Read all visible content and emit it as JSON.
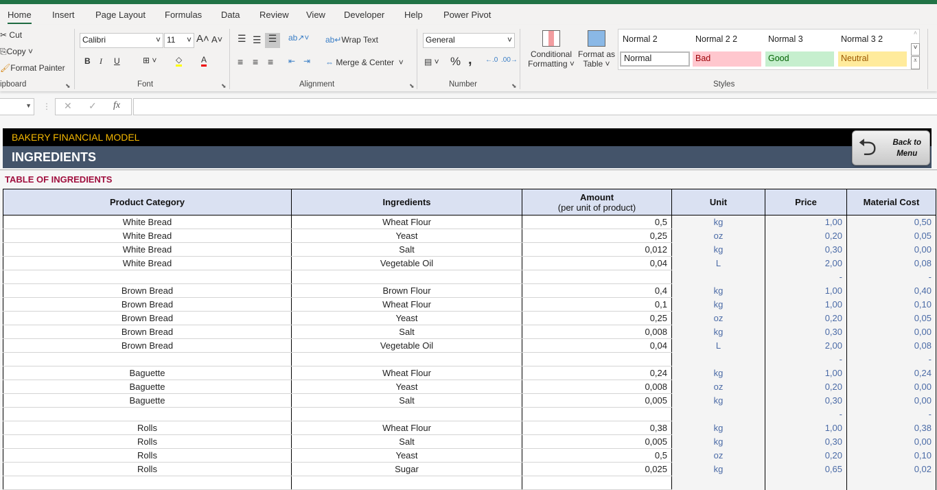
{
  "ribbon_tabs": [
    "Home",
    "Insert",
    "Page Layout",
    "Formulas",
    "Data",
    "Review",
    "View",
    "Developer",
    "Help",
    "Power Pivot"
  ],
  "clipboard": {
    "cut": "Cut",
    "copy": "Copy",
    "format_painter": "Format Painter",
    "group": "ipboard"
  },
  "font": {
    "name": "Calibri",
    "size": "11",
    "group": "Font",
    "bold": "B",
    "italic": "I",
    "underline": "U"
  },
  "alignment": {
    "wrap_text": "Wrap Text",
    "merge_center": "Merge & Center",
    "group": "Alignment"
  },
  "number": {
    "format": "General",
    "group": "Number",
    "percent": "%",
    "comma": ","
  },
  "styles": {
    "conditional": [
      "Conditional",
      "Formatting"
    ],
    "format_table": [
      "Format as",
      "Table"
    ],
    "group": "Styles",
    "cells": [
      "Normal 2",
      "Normal 2 2",
      "Normal 3",
      "Normal 3 2",
      "Normal",
      "Bad",
      "Good",
      "Neutral"
    ]
  },
  "formula_bar": {
    "fx": "fx",
    "value": ""
  },
  "header": {
    "model_title": "BAKERY FINANCIAL MODEL",
    "section_title": "INGREDIENTS",
    "back_button": [
      "Back to",
      "Menu"
    ]
  },
  "table": {
    "title": "TABLE OF INGREDIENTS",
    "columns": [
      "Product Category",
      "Ingredients",
      "Amount",
      "Unit",
      "Price",
      "Material Cost"
    ],
    "amount_sub": "(per unit of product)",
    "rows": [
      [
        "White Bread",
        "Wheat Flour",
        "0,5",
        "kg",
        "1,00",
        "0,50"
      ],
      [
        "White Bread",
        "Yeast",
        "0,25",
        "oz",
        "0,20",
        "0,05"
      ],
      [
        "White Bread",
        "Salt",
        "0,012",
        "kg",
        "0,30",
        "0,00"
      ],
      [
        "White Bread",
        "Vegetable Oil",
        "0,04",
        "L",
        "2,00",
        "0,08"
      ],
      [
        "",
        "",
        "",
        "",
        "-",
        "-"
      ],
      [
        "Brown Bread",
        "Brown Flour",
        "0,4",
        "kg",
        "1,00",
        "0,40"
      ],
      [
        "Brown Bread",
        "Wheat Flour",
        "0,1",
        "kg",
        "1,00",
        "0,10"
      ],
      [
        "Brown Bread",
        "Yeast",
        "0,25",
        "oz",
        "0,20",
        "0,05"
      ],
      [
        "Brown Bread",
        "Salt",
        "0,008",
        "kg",
        "0,30",
        "0,00"
      ],
      [
        "Brown Bread",
        "Vegetable Oil",
        "0,04",
        "L",
        "2,00",
        "0,08"
      ],
      [
        "",
        "",
        "",
        "",
        "-",
        "-"
      ],
      [
        "Baguette",
        "Wheat Flour",
        "0,24",
        "kg",
        "1,00",
        "0,24"
      ],
      [
        "Baguette",
        "Yeast",
        "0,008",
        "oz",
        "0,20",
        "0,00"
      ],
      [
        "Baguette",
        "Salt",
        "0,005",
        "kg",
        "0,30",
        "0,00"
      ],
      [
        "",
        "",
        "",
        "",
        "-",
        "-"
      ],
      [
        "Rolls",
        "Wheat Flour",
        "0,38",
        "kg",
        "1,00",
        "0,38"
      ],
      [
        "Rolls",
        "Salt",
        "0,005",
        "kg",
        "0,30",
        "0,00"
      ],
      [
        "Rolls",
        "Yeast",
        "0,5",
        "oz",
        "0,20",
        "0,10"
      ],
      [
        "Rolls",
        "Sugar",
        "0,025",
        "kg",
        "0,65",
        "0,02"
      ],
      [
        "",
        "",
        "",
        "",
        "",
        ""
      ]
    ]
  }
}
